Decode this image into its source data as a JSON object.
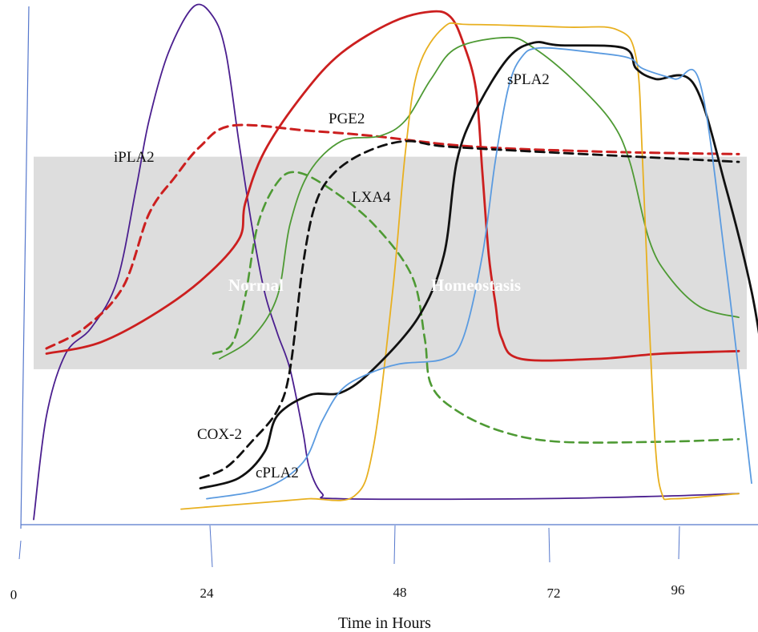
{
  "chart_data": {
    "type": "line",
    "title": "",
    "xlabel": "Time in Hours",
    "ylabel": "",
    "x_ticks": [
      "0",
      "24",
      "48",
      "72",
      "96"
    ],
    "xlim": [
      0,
      115
    ],
    "ylim": [
      0,
      100
    ],
    "grid": false,
    "legend": "none",
    "band": {
      "labels": [
        "Normal",
        "Homeostasis"
      ],
      "y_range": [
        30,
        71
      ],
      "color": "#dddddd"
    },
    "series": [
      {
        "name": "iPLA2",
        "color": "#4b1f8f",
        "dashed": false,
        "width": 1.8,
        "points": [
          [
            2,
            1
          ],
          [
            4,
            21
          ],
          [
            7,
            33
          ],
          [
            11,
            38
          ],
          [
            15,
            47
          ],
          [
            18,
            65
          ],
          [
            20,
            78
          ],
          [
            23,
            91
          ],
          [
            27,
            100
          ],
          [
            30,
            98
          ],
          [
            32,
            91
          ],
          [
            34,
            74
          ],
          [
            36,
            58
          ],
          [
            38,
            45
          ],
          [
            40,
            37
          ],
          [
            42,
            30
          ],
          [
            44,
            18
          ],
          [
            45,
            11
          ],
          [
            47,
            6
          ],
          [
            50,
            5
          ],
          [
            80,
            5
          ],
          [
            100,
            5.5
          ],
          [
            112,
            6
          ]
        ]
      },
      {
        "name": "",
        "color": "#cc1f1f",
        "dashed": true,
        "width": 3,
        "points": [
          [
            4,
            34
          ],
          [
            10,
            38
          ],
          [
            16,
            46
          ],
          [
            20,
            60
          ],
          [
            24,
            67
          ],
          [
            28,
            73
          ],
          [
            33,
            77
          ],
          [
            45,
            76
          ],
          [
            55,
            75
          ],
          [
            70,
            73
          ],
          [
            90,
            72
          ],
          [
            112,
            71.5
          ]
        ]
      },
      {
        "name": "PGE2",
        "color": "#cc1f1f",
        "dashed": false,
        "width": 2.8,
        "points": [
          [
            4,
            33
          ],
          [
            12,
            35
          ],
          [
            20,
            40
          ],
          [
            28,
            47
          ],
          [
            34,
            55
          ],
          [
            35,
            62
          ],
          [
            38,
            72
          ],
          [
            44,
            83
          ],
          [
            50,
            91
          ],
          [
            58,
            97
          ],
          [
            64,
            99
          ],
          [
            67,
            98
          ],
          [
            69,
            93
          ],
          [
            71,
            84
          ],
          [
            72,
            68
          ],
          [
            73,
            52
          ],
          [
            74,
            43
          ],
          [
            75,
            36
          ],
          [
            78,
            32
          ],
          [
            90,
            32
          ],
          [
            100,
            33
          ],
          [
            112,
            33.5
          ]
        ]
      },
      {
        "name": "LXA4",
        "color": "#4e9a34",
        "dashed": false,
        "width": 1.8,
        "points": [
          [
            31,
            32
          ],
          [
            36,
            36
          ],
          [
            40,
            44
          ],
          [
            42,
            58
          ],
          [
            45,
            68
          ],
          [
            50,
            74
          ],
          [
            56,
            75
          ],
          [
            60,
            78
          ],
          [
            64,
            86
          ],
          [
            68,
            92
          ],
          [
            76,
            94
          ],
          [
            80,
            92
          ],
          [
            86,
            86
          ],
          [
            92,
            78
          ],
          [
            95,
            70
          ],
          [
            98,
            55
          ],
          [
            101,
            48
          ],
          [
            106,
            42
          ],
          [
            112,
            40
          ]
        ]
      },
      {
        "name": "",
        "color": "#4e9a34",
        "dashed": true,
        "width": 2.6,
        "points": [
          [
            30,
            33
          ],
          [
            33,
            35
          ],
          [
            35,
            44
          ],
          [
            37,
            58
          ],
          [
            40,
            66
          ],
          [
            43,
            68
          ],
          [
            48,
            65
          ],
          [
            55,
            58
          ],
          [
            61,
            48
          ],
          [
            63,
            36
          ],
          [
            64,
            27
          ],
          [
            68,
            22
          ],
          [
            75,
            18
          ],
          [
            84,
            16
          ],
          [
            100,
            16
          ],
          [
            112,
            16.5
          ]
        ]
      },
      {
        "name": "sPLA2",
        "color": "#e8b020",
        "dashed": false,
        "width": 1.8,
        "points": [
          [
            25,
            3
          ],
          [
            35,
            4
          ],
          [
            40,
            4.5
          ],
          [
            45,
            5
          ],
          [
            52,
            5.5
          ],
          [
            55,
            15
          ],
          [
            58,
            45
          ],
          [
            60,
            72
          ],
          [
            62,
            88
          ],
          [
            66,
            96
          ],
          [
            70,
            96.5
          ],
          [
            85,
            96
          ],
          [
            93,
            95.5
          ],
          [
            96,
            90
          ],
          [
            97,
            70
          ],
          [
            98,
            40
          ],
          [
            99,
            15
          ],
          [
            100,
            6
          ],
          [
            102,
            5
          ],
          [
            112,
            6
          ]
        ]
      },
      {
        "name": "COX-2",
        "color": "#111111",
        "dashed": true,
        "width": 2.8,
        "points": [
          [
            28,
            9
          ],
          [
            32,
            11
          ],
          [
            36,
            16
          ],
          [
            40,
            22
          ],
          [
            42,
            30
          ],
          [
            44,
            50
          ],
          [
            46,
            62
          ],
          [
            49,
            68
          ],
          [
            54,
            72
          ],
          [
            60,
            74
          ],
          [
            66,
            73
          ],
          [
            80,
            72
          ],
          [
            96,
            71
          ],
          [
            112,
            70
          ]
        ]
      },
      {
        "name": "",
        "color": "#111111",
        "dashed": false,
        "width": 2.8,
        "points": [
          [
            28,
            7
          ],
          [
            34,
            9
          ],
          [
            38,
            14
          ],
          [
            40,
            21
          ],
          [
            45,
            25
          ],
          [
            50,
            25.5
          ],
          [
            55,
            30
          ],
          [
            62,
            40
          ],
          [
            66,
            52
          ],
          [
            68,
            70
          ],
          [
            71,
            80
          ],
          [
            76,
            90
          ],
          [
            80,
            93
          ],
          [
            84,
            92.5
          ],
          [
            94,
            92
          ],
          [
            96,
            88
          ],
          [
            99,
            86
          ],
          [
            105,
            85
          ],
          [
            110,
            65
          ],
          [
            114,
            45
          ],
          [
            116,
            30
          ]
        ]
      },
      {
        "name": "cPLA2",
        "color": "#5b9be0",
        "dashed": false,
        "width": 1.8,
        "points": [
          [
            29,
            5
          ],
          [
            38,
            7
          ],
          [
            44,
            12
          ],
          [
            47,
            20
          ],
          [
            50,
            26
          ],
          [
            54,
            29
          ],
          [
            59,
            31
          ],
          [
            66,
            32
          ],
          [
            69,
            36
          ],
          [
            72,
            52
          ],
          [
            74,
            70
          ],
          [
            76,
            84
          ],
          [
            78,
            90
          ],
          [
            81,
            92
          ],
          [
            90,
            91
          ],
          [
            95,
            90
          ],
          [
            97,
            88
          ],
          [
            102,
            86
          ],
          [
            106,
            85
          ],
          [
            110,
            50
          ],
          [
            114,
            8
          ]
        ]
      }
    ],
    "labels": [
      {
        "text": "iPLA2"
      },
      {
        "text": "PGE2"
      },
      {
        "text": "LXA4"
      },
      {
        "text": "sPLA2"
      },
      {
        "text": "COX-2"
      },
      {
        "text": "cPLA2"
      }
    ]
  }
}
